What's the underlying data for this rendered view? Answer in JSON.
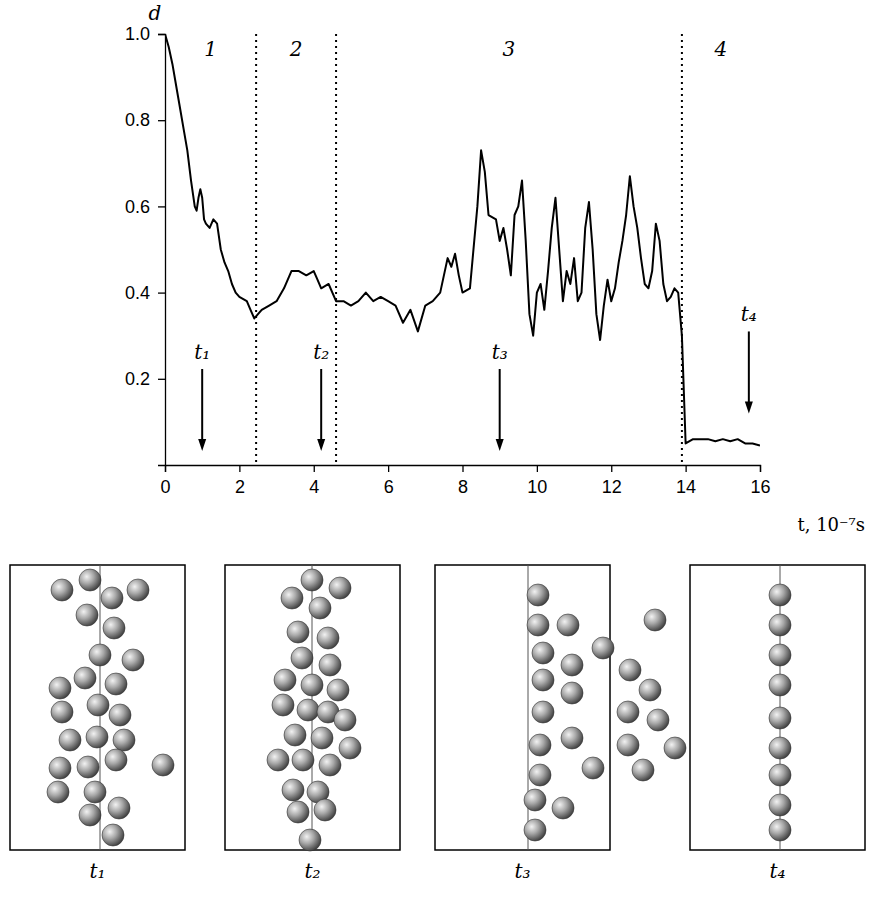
{
  "chart_data": {
    "type": "line",
    "x_label": "t, 10⁻⁷s",
    "y_label": "d",
    "color": "#000000",
    "line_style": "solid",
    "xlim": [
      0,
      16
    ],
    "xticks": [
      0,
      2,
      4,
      6,
      8,
      10,
      12,
      14,
      16
    ],
    "ylim": [
      0,
      1
    ],
    "yticks": [
      0.2,
      0.4,
      0.6,
      0.8,
      {
        "value": 1,
        "label": "1.0"
      }
    ],
    "x": [
      0,
      0.1,
      0.2,
      0.3,
      0.4,
      0.5,
      0.6,
      0.7,
      0.8,
      0.85,
      0.9,
      0.95,
      1.0,
      1.05,
      1.1,
      1.2,
      1.3,
      1.4,
      1.5,
      1.6,
      1.7,
      1.8,
      1.9,
      2.0,
      2.2,
      2.3,
      2.4,
      2.5,
      2.6,
      2.8,
      3.0,
      3.2,
      3.4,
      3.6,
      3.8,
      4.0,
      4.1,
      4.2,
      4.4,
      4.6,
      4.8,
      5.0,
      5.2,
      5.4,
      5.6,
      5.8,
      6.0,
      6.2,
      6.4,
      6.6,
      6.8,
      7.0,
      7.2,
      7.4,
      7.6,
      7.7,
      7.8,
      7.9,
      8.0,
      8.2,
      8.4,
      8.5,
      8.6,
      8.7,
      8.9,
      9.0,
      9.1,
      9.2,
      9.3,
      9.4,
      9.5,
      9.6,
      9.7,
      9.8,
      9.9,
      10.0,
      10.1,
      10.2,
      10.3,
      10.4,
      10.5,
      10.6,
      10.7,
      10.8,
      10.9,
      11.0,
      11.1,
      11.2,
      11.3,
      11.4,
      11.5,
      11.6,
      11.7,
      11.8,
      11.9,
      12.0,
      12.1,
      12.2,
      12.3,
      12.4,
      12.5,
      12.6,
      12.7,
      12.8,
      12.9,
      13.0,
      13.1,
      13.2,
      13.3,
      13.4,
      13.5,
      13.6,
      13.7,
      13.8,
      13.9,
      14.0,
      14.2,
      14.4,
      14.6,
      14.8,
      15.0,
      15.2,
      15.4,
      15.6,
      15.8,
      16.0
    ],
    "values": [
      1.0,
      0.97,
      0.93,
      0.88,
      0.83,
      0.78,
      0.73,
      0.66,
      0.6,
      0.59,
      0.62,
      0.64,
      0.62,
      0.57,
      0.56,
      0.55,
      0.57,
      0.56,
      0.5,
      0.47,
      0.45,
      0.42,
      0.4,
      0.39,
      0.38,
      0.36,
      0.34,
      0.35,
      0.36,
      0.37,
      0.38,
      0.41,
      0.45,
      0.45,
      0.44,
      0.45,
      0.43,
      0.41,
      0.42,
      0.38,
      0.38,
      0.37,
      0.38,
      0.4,
      0.38,
      0.39,
      0.38,
      0.37,
      0.33,
      0.36,
      0.31,
      0.37,
      0.38,
      0.4,
      0.48,
      0.46,
      0.49,
      0.44,
      0.4,
      0.41,
      0.6,
      0.73,
      0.68,
      0.58,
      0.57,
      0.52,
      0.55,
      0.5,
      0.44,
      0.58,
      0.6,
      0.66,
      0.52,
      0.35,
      0.3,
      0.4,
      0.42,
      0.36,
      0.45,
      0.55,
      0.62,
      0.5,
      0.38,
      0.45,
      0.42,
      0.48,
      0.38,
      0.4,
      0.55,
      0.61,
      0.5,
      0.35,
      0.29,
      0.37,
      0.43,
      0.38,
      0.41,
      0.47,
      0.52,
      0.58,
      0.67,
      0.6,
      0.55,
      0.48,
      0.42,
      0.41,
      0.45,
      0.56,
      0.52,
      0.42,
      0.38,
      0.39,
      0.41,
      0.4,
      0.3,
      0.05,
      0.06,
      0.06,
      0.06,
      0.055,
      0.06,
      0.055,
      0.06,
      0.05,
      0.05,
      0.045
    ],
    "regions": {
      "boundaries": [
        2.45,
        4.6,
        13.9
      ],
      "labels": [
        "1",
        "2",
        "3",
        "4"
      ]
    },
    "markers": [
      {
        "label": "t₁",
        "x": 1.0
      },
      {
        "label": "t₂",
        "x": 4.2
      },
      {
        "label": "t₃",
        "x": 9.0
      },
      {
        "label": "t₄",
        "x": 15.7
      }
    ]
  }
}
